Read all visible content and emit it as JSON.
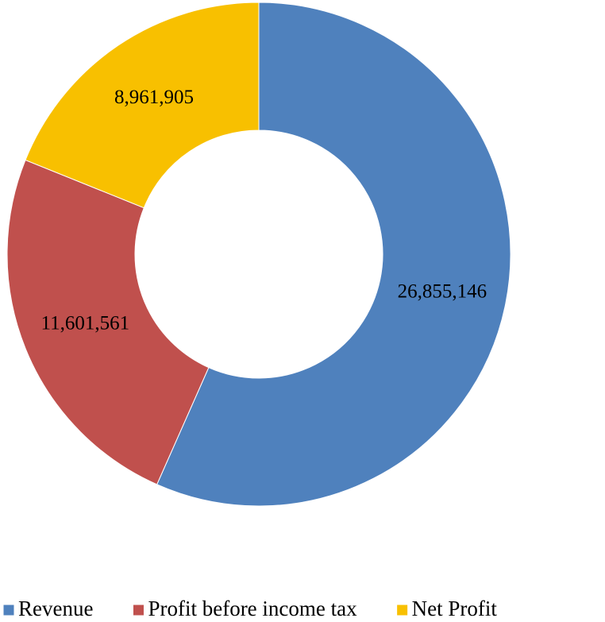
{
  "chart_data": {
    "type": "donut",
    "categories": [
      "Revenue",
      "Profit before income tax",
      "Net Profit"
    ],
    "values": [
      26855146,
      11601561,
      8961905
    ],
    "value_labels": [
      "26,855,146",
      "11,601,561",
      "8,961,905"
    ],
    "colors": [
      "#4f81bd",
      "#c0504d",
      "#f8c000"
    ],
    "legend": "bottom"
  }
}
